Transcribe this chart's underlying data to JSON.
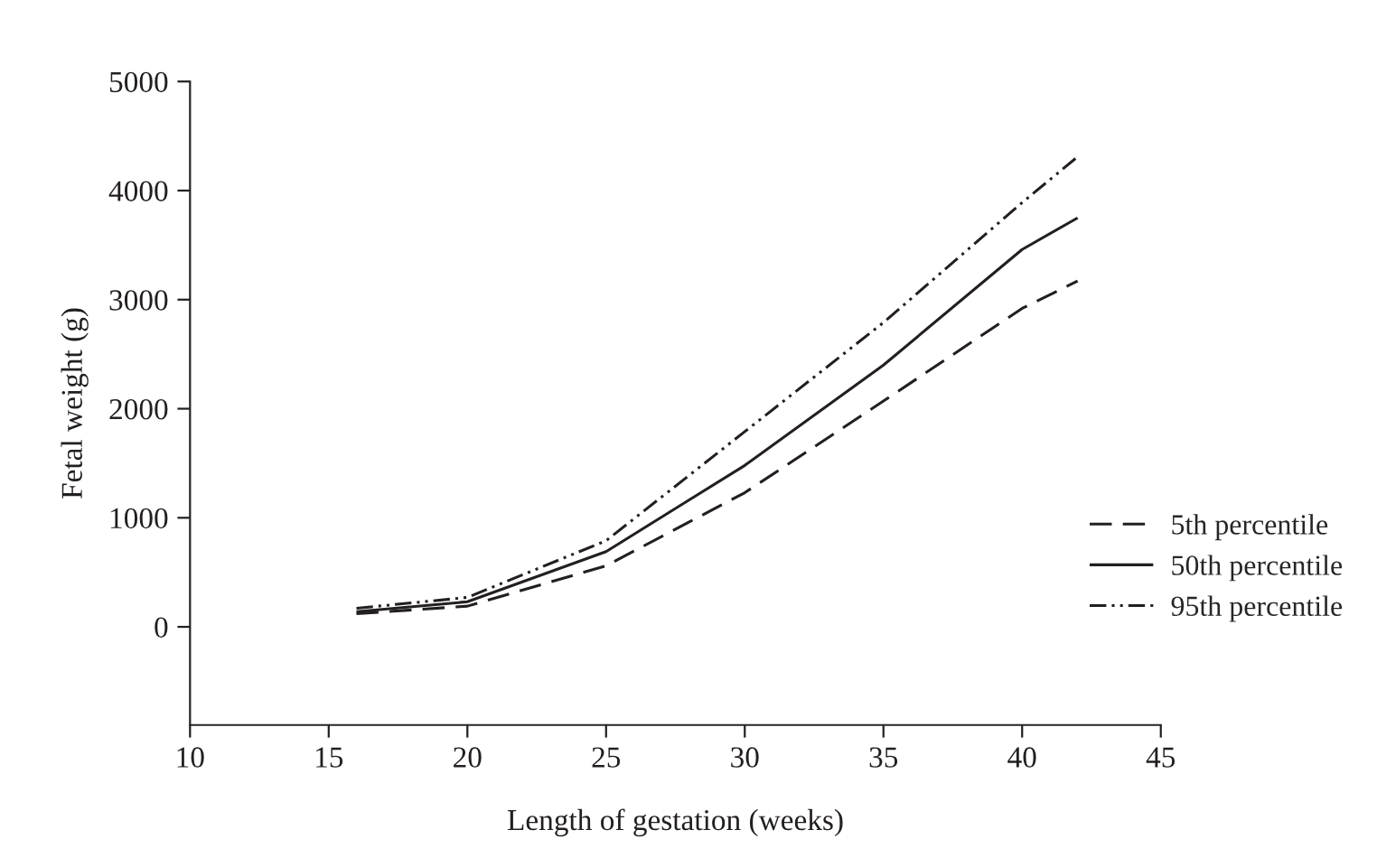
{
  "chart_data": {
    "type": "line",
    "xlabel": "Length of gestation (weeks)",
    "ylabel": "Fetal weight (g)",
    "x": [
      16,
      20,
      25,
      30,
      35,
      40,
      42
    ],
    "series": [
      {
        "name": "5th percentile",
        "color": "#231f20",
        "line_style": "dashed",
        "values": [
          120,
          190,
          560,
          1230,
          2070,
          2920,
          3170
        ]
      },
      {
        "name": "50th percentile",
        "color": "#231f20",
        "line_style": "solid",
        "values": [
          140,
          230,
          690,
          1480,
          2400,
          3460,
          3750
        ]
      },
      {
        "name": "95th percentile",
        "color": "#231f20",
        "line_style": "dashdotdot",
        "values": [
          170,
          270,
          790,
          1790,
          2790,
          3890,
          4310
        ]
      }
    ],
    "xlim": [
      10,
      45
    ],
    "xticks": [
      10,
      15,
      20,
      25,
      30,
      35,
      40,
      45
    ],
    "ylim": [
      -900,
      5000
    ],
    "yticks": [
      0,
      1000,
      2000,
      3000,
      4000,
      5000
    ],
    "grid": false,
    "legend": "bottom right",
    "marker": "none"
  }
}
